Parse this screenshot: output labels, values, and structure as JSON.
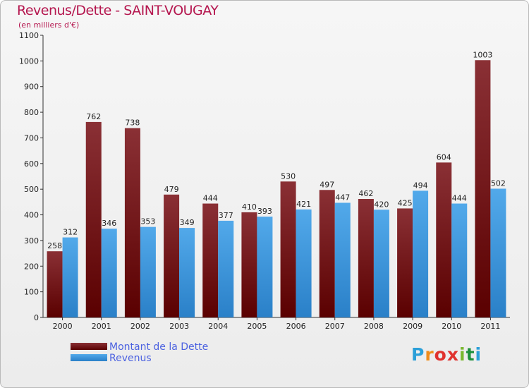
{
  "title": "Revenus/Dette - SAINT-VOUGAY",
  "subtitle": "(en milliers d'€)",
  "legend": {
    "dette": "Montant de la Dette",
    "revenus": "Revenus"
  },
  "logo": {
    "letters": [
      "P",
      "r",
      "o",
      "x",
      "i",
      "t",
      "i"
    ],
    "colors": [
      "#2b9fd8",
      "#f08c1a",
      "#e0322e",
      "#e0322e",
      "#79b82f",
      "#1e8f3c",
      "#2b9fd8"
    ]
  },
  "colors": {
    "dette_top": "#8a3035",
    "dette_bottom": "#5a0000",
    "revenus_top": "#52a9ea",
    "revenus_bottom": "#2a80c8"
  },
  "chart_data": {
    "type": "bar",
    "title": "Revenus/Dette - SAINT-VOUGAY",
    "ylabel": "(en milliers d'€)",
    "xlabel": "",
    "ylim": [
      0,
      1100
    ],
    "yticks": [
      0,
      100,
      200,
      300,
      400,
      500,
      600,
      700,
      800,
      900,
      1000,
      1100
    ],
    "categories": [
      "2000",
      "2001",
      "2002",
      "2003",
      "2004",
      "2005",
      "2006",
      "2007",
      "2008",
      "2009",
      "2010",
      "2011"
    ],
    "series": [
      {
        "name": "Montant de la Dette",
        "values": [
          258,
          762,
          738,
          479,
          444,
          410,
          530,
          497,
          462,
          425,
          604,
          1003
        ]
      },
      {
        "name": "Revenus",
        "values": [
          312,
          346,
          353,
          349,
          377,
          393,
          421,
          447,
          420,
          494,
          444,
          502
        ]
      }
    ],
    "legend": "bottom-left",
    "grid": false
  }
}
